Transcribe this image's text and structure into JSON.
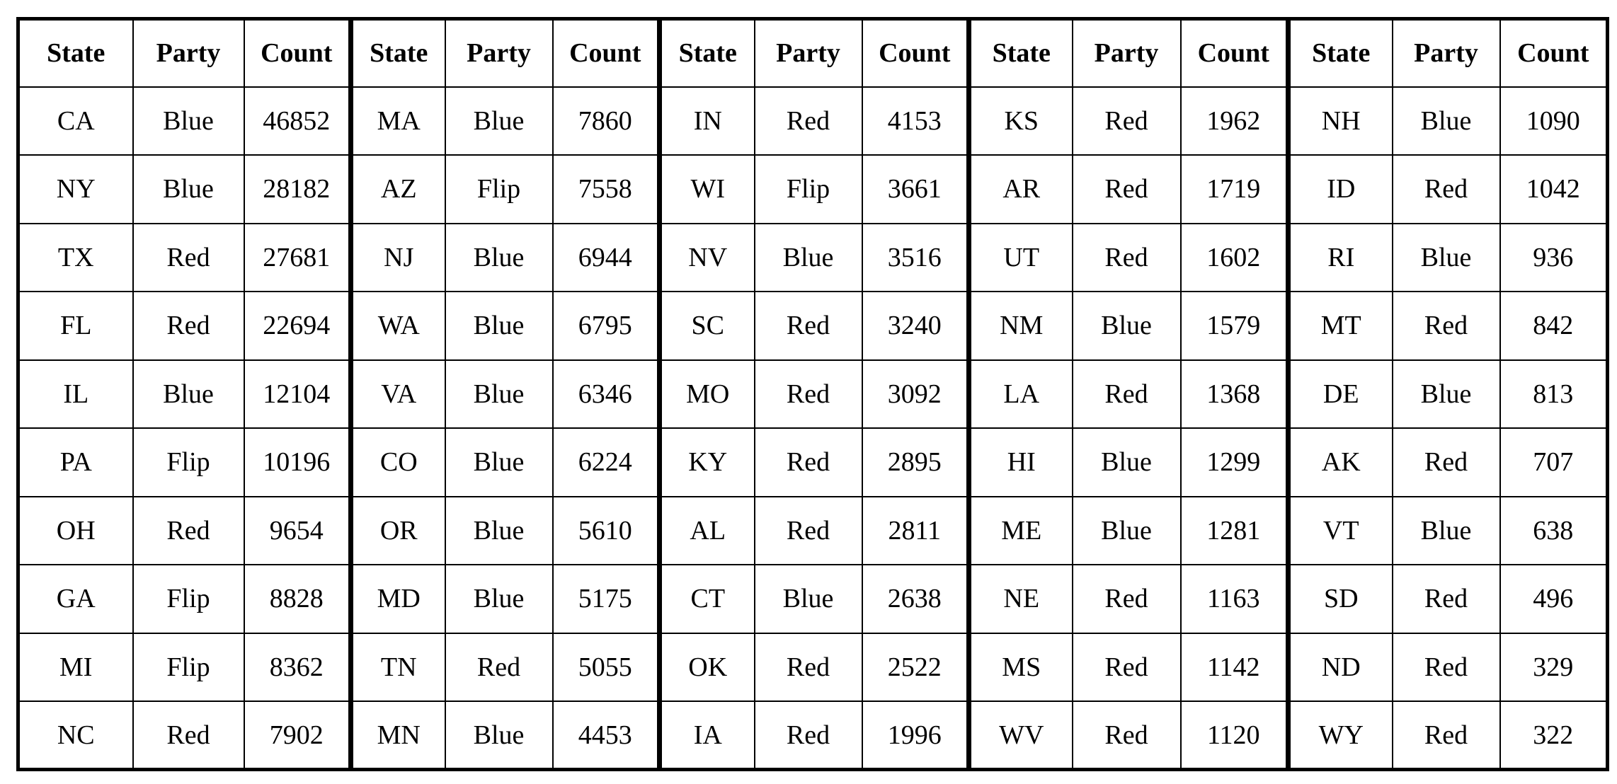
{
  "table": {
    "headers": [
      "State",
      "Party",
      "Count",
      "State",
      "Party",
      "Count",
      "State",
      "Party",
      "Count",
      "State",
      "Party",
      "Count",
      "State",
      "Party",
      "Count"
    ],
    "rows": [
      [
        "CA",
        "Blue",
        "46852",
        "MA",
        "Blue",
        "7860",
        "IN",
        "Red",
        "4153",
        "KS",
        "Red",
        "1962",
        "NH",
        "Blue",
        "1090"
      ],
      [
        "NY",
        "Blue",
        "28182",
        "AZ",
        "Flip",
        "7558",
        "WI",
        "Flip",
        "3661",
        "AR",
        "Red",
        "1719",
        "ID",
        "Red",
        "1042"
      ],
      [
        "TX",
        "Red",
        "27681",
        "NJ",
        "Blue",
        "6944",
        "NV",
        "Blue",
        "3516",
        "UT",
        "Red",
        "1602",
        "RI",
        "Blue",
        "936"
      ],
      [
        "FL",
        "Red",
        "22694",
        "WA",
        "Blue",
        "6795",
        "SC",
        "Red",
        "3240",
        "NM",
        "Blue",
        "1579",
        "MT",
        "Red",
        "842"
      ],
      [
        "IL",
        "Blue",
        "12104",
        "VA",
        "Blue",
        "6346",
        "MO",
        "Red",
        "3092",
        "LA",
        "Red",
        "1368",
        "DE",
        "Blue",
        "813"
      ],
      [
        "PA",
        "Flip",
        "10196",
        "CO",
        "Blue",
        "6224",
        "KY",
        "Red",
        "2895",
        "HI",
        "Blue",
        "1299",
        "AK",
        "Red",
        "707"
      ],
      [
        "OH",
        "Red",
        "9654",
        "OR",
        "Blue",
        "5610",
        "AL",
        "Red",
        "2811",
        "ME",
        "Blue",
        "1281",
        "VT",
        "Blue",
        "638"
      ],
      [
        "GA",
        "Flip",
        "8828",
        "MD",
        "Blue",
        "5175",
        "CT",
        "Blue",
        "2638",
        "NE",
        "Red",
        "1163",
        "SD",
        "Red",
        "496"
      ],
      [
        "MI",
        "Flip",
        "8362",
        "TN",
        "Red",
        "5055",
        "OK",
        "Red",
        "2522",
        "MS",
        "Red",
        "1142",
        "ND",
        "Red",
        "329"
      ],
      [
        "NC",
        "Red",
        "7902",
        "MN",
        "Blue",
        "4453",
        "IA",
        "Red",
        "1996",
        "WV",
        "Red",
        "1120",
        "WY",
        "Red",
        "322"
      ]
    ]
  }
}
